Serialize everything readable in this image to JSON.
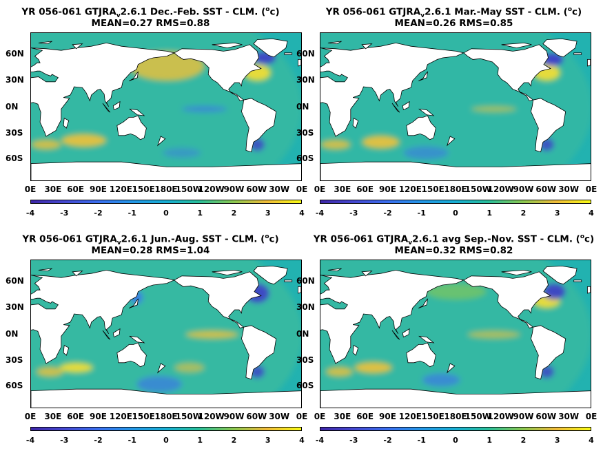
{
  "panels": [
    {
      "title_pre": "YR 056-061 GTJRA",
      "title_sub": "v",
      "title_post": "2.6.1  Dec.-Feb. SST - CLM. (",
      "title_sup": "o",
      "title_end": "c)",
      "stats": "MEAN=0.27   RMS=0.88"
    },
    {
      "title_pre": "YR 056-061 GTJRA",
      "title_sub": "v",
      "title_post": "2.6.1 Mar.-May SST - CLM. (",
      "title_sup": "o",
      "title_end": "c)",
      "stats": "MEAN=0.26   RMS=0.85"
    },
    {
      "title_pre": "YR 056-061 GTJRA",
      "title_sub": "v",
      "title_post": "2.6.1 Jun.-Aug. SST - CLM. (",
      "title_sup": "o",
      "title_end": "c)",
      "stats": "MEAN=0.28   RMS=1.04"
    },
    {
      "title_pre": "YR 056-061 GTJRA",
      "title_sub": "v",
      "title_post": "2.6.1 avg Sep.-Nov. SST - CLM. (",
      "title_sup": "o",
      "title_end": "c)",
      "stats": "MEAN=0.32   RMS=0.82"
    }
  ],
  "lat_labels": [
    "60N",
    "30N",
    "0N",
    "30S",
    "60S"
  ],
  "lon_labels": [
    "0E",
    "30E",
    "60E",
    "90E",
    "120E",
    "150E",
    "180E",
    "150W",
    "120W",
    "90W",
    "60W",
    "30W",
    "0E"
  ],
  "colorbar_ticks": [
    "-4",
    "-3",
    "-2",
    "-1",
    "0",
    "1",
    "2",
    "3",
    "4"
  ],
  "colors": {
    "ocean_base": "#22b2b0",
    "land": "#ffffff",
    "warm": "#f9d12e",
    "cold": "#3e3fc8"
  }
}
